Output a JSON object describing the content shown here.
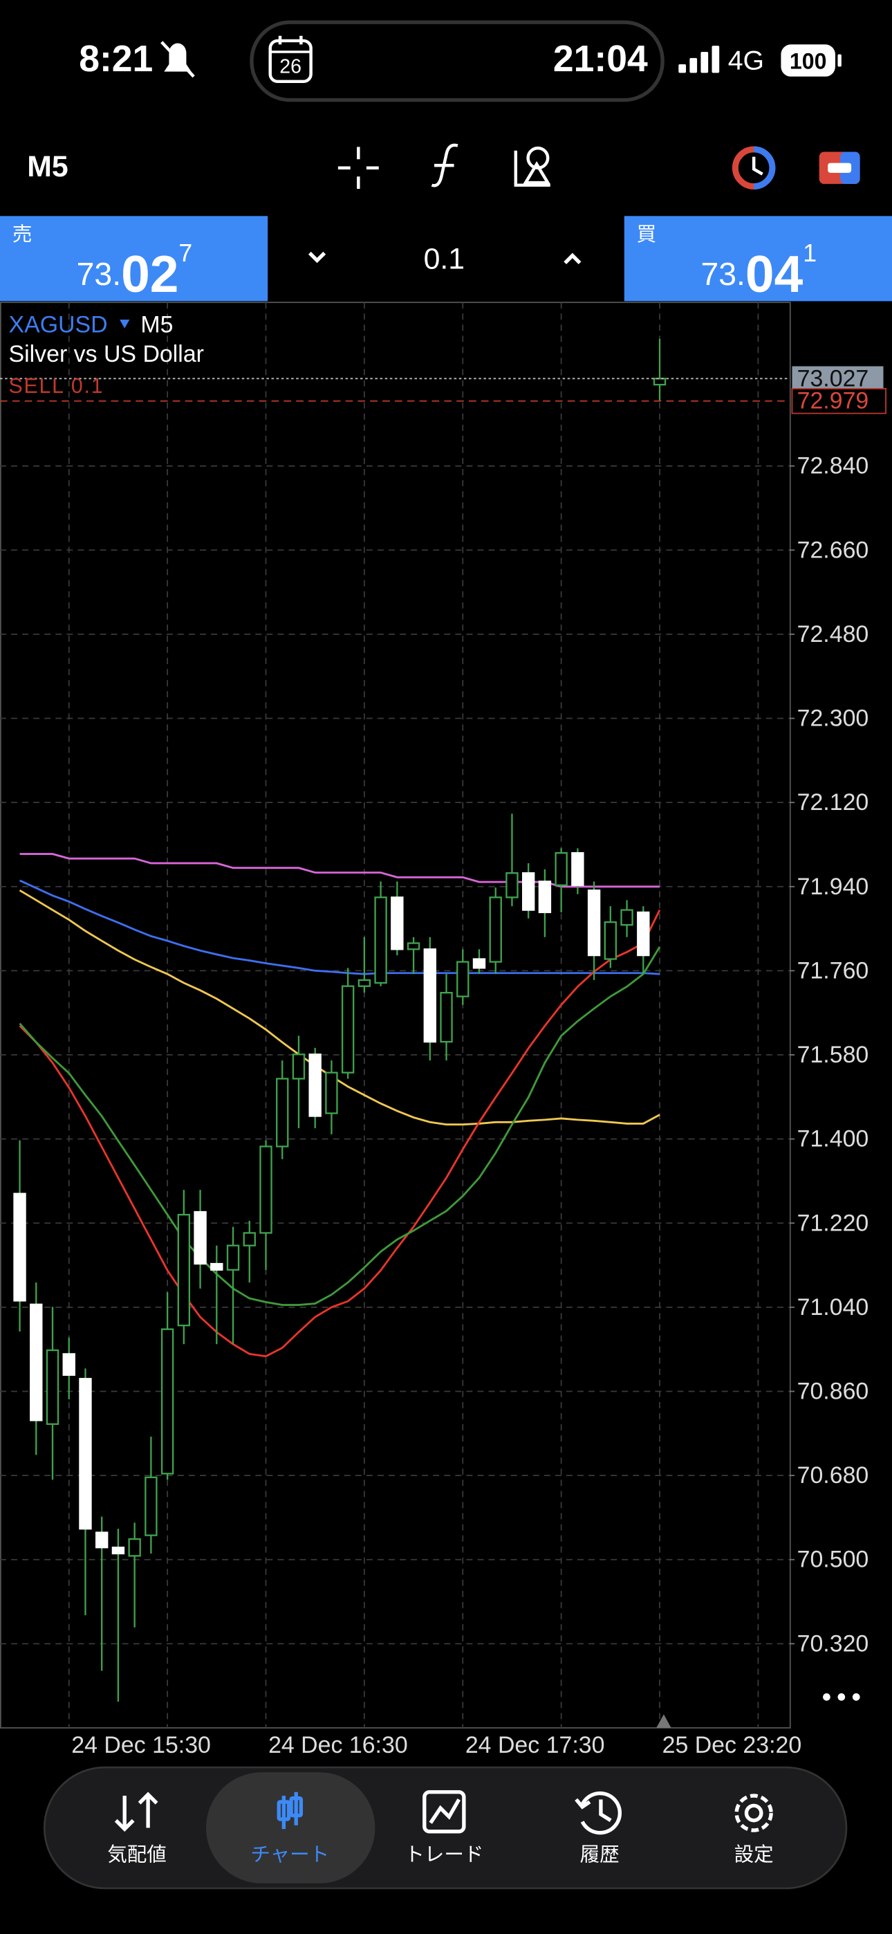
{
  "status_bar": {
    "time": "8:21",
    "calendar_day": "26",
    "clock": "21:04",
    "network": "4G",
    "battery": "100"
  },
  "toolbar": {
    "timeframe": "M5"
  },
  "trade_panel": {
    "sell": {
      "label": "売",
      "price_head": "73.",
      "price_main": "02",
      "price_tail": "7"
    },
    "volume": "0.1",
    "buy": {
      "label": "買",
      "price_head": "73.",
      "price_main": "04",
      "price_tail": "1"
    }
  },
  "chart_data": {
    "type": "candlestick",
    "symbol": "XAGUSD",
    "timeframe": "M5",
    "description": "Silver vs US Dollar",
    "categories": [
      null,
      null,
      null,
      "24 Dec 15:30",
      null,
      null,
      null,
      null,
      null,
      null,
      null,
      null,
      null,
      null,
      null,
      "24 Dec 16:30",
      null,
      null,
      null,
      null,
      null,
      null,
      null,
      null,
      null,
      null,
      null,
      "24 Dec 17:30",
      null,
      null,
      null,
      null,
      null,
      null,
      null,
      null,
      null,
      null,
      null,
      "25 Dec 23:20"
    ],
    "open": [
      71.283,
      71.046,
      70.79,
      70.94,
      70.887,
      70.558,
      70.526,
      70.508,
      70.552,
      70.684,
      71.001,
      71.244,
      71.133,
      71.12,
      71.172,
      71.199,
      71.384,
      71.529,
      71.581,
      71.455,
      71.542,
      71.727,
      71.734,
      71.917,
      71.806,
      71.806,
      71.608,
      71.705,
      71.785,
      71.779,
      71.917,
      71.969,
      71.951,
      71.943,
      72.012,
      71.932,
      71.785,
      71.858,
      71.885,
      73.014
    ],
    "high": [
      71.397,
      71.093,
      71.041,
      70.975,
      70.909,
      70.592,
      70.566,
      70.579,
      70.763,
      71.072,
      71.291,
      71.291,
      71.172,
      71.212,
      71.225,
      71.397,
      71.568,
      71.621,
      71.595,
      71.568,
      71.766,
      71.832,
      71.951,
      71.951,
      71.832,
      71.832,
      71.753,
      71.806,
      71.806,
      71.938,
      72.096,
      71.99,
      71.977,
      72.022,
      72.022,
      71.951,
      71.898,
      71.911,
      71.898,
      73.112
    ],
    "low": [
      70.988,
      70.724,
      70.671,
      70.843,
      70.381,
      70.262,
      70.196,
      70.355,
      70.513,
      70.671,
      70.961,
      71.08,
      70.961,
      70.961,
      71.093,
      71.12,
      71.357,
      71.423,
      71.423,
      71.41,
      71.529,
      71.713,
      71.727,
      71.793,
      71.753,
      71.568,
      71.568,
      71.687,
      71.753,
      71.753,
      71.898,
      71.872,
      71.832,
      71.885,
      71.924,
      71.74,
      71.766,
      71.832,
      71.753,
      72.98
    ],
    "close": [
      71.054,
      70.798,
      70.948,
      70.895,
      70.566,
      70.526,
      70.513,
      70.544,
      70.676,
      70.993,
      71.238,
      71.133,
      71.12,
      71.172,
      71.199,
      71.384,
      71.529,
      71.581,
      71.449,
      71.542,
      71.727,
      71.74,
      71.917,
      71.806,
      71.819,
      71.608,
      71.713,
      71.779,
      71.766,
      71.917,
      71.969,
      71.89,
      71.885,
      72.012,
      71.943,
      71.793,
      71.864,
      71.89,
      71.793,
      73.027
    ],
    "up_color": "#3fa34d",
    "down_color": "#ffffff",
    "wick_color": "#3fa34d",
    "series": [
      {
        "color": "#d966d9",
        "values": [
          72.01,
          72.01,
          72.01,
          72.0,
          72.0,
          72.0,
          72.0,
          72.0,
          71.99,
          71.99,
          71.99,
          71.99,
          71.99,
          71.98,
          71.98,
          71.98,
          71.98,
          71.98,
          71.97,
          71.97,
          71.97,
          71.97,
          71.97,
          71.96,
          71.96,
          71.96,
          71.96,
          71.96,
          71.95,
          71.95,
          71.95,
          71.95,
          71.95,
          71.94,
          71.94,
          71.94,
          71.94,
          71.94,
          71.94,
          71.94
        ]
      },
      {
        "color": "#3f6ff0",
        "values": [
          71.953,
          71.937,
          71.921,
          71.908,
          71.892,
          71.877,
          71.863,
          71.848,
          71.834,
          71.824,
          71.813,
          71.803,
          71.795,
          71.787,
          71.782,
          71.776,
          71.771,
          71.766,
          71.76,
          71.758,
          71.755,
          71.753,
          71.755,
          71.755,
          71.755,
          71.755,
          71.755,
          71.755,
          71.755,
          71.755,
          71.755,
          71.755,
          71.755,
          71.755,
          71.755,
          71.755,
          71.755,
          71.755,
          71.755,
          71.753
        ]
      },
      {
        "color": "#f0c850",
        "values": [
          71.932,
          71.911,
          71.89,
          71.869,
          71.845,
          71.824,
          71.803,
          71.784,
          71.768,
          71.753,
          71.734,
          71.718,
          71.7,
          71.679,
          71.658,
          71.634,
          71.607,
          71.581,
          71.557,
          71.534,
          71.512,
          71.494,
          71.476,
          71.46,
          71.446,
          71.436,
          71.431,
          71.431,
          71.433,
          71.436,
          71.436,
          71.439,
          71.441,
          71.444,
          71.441,
          71.439,
          71.436,
          71.433,
          71.433,
          71.452
        ]
      },
      {
        "color": "#e8352b",
        "values": [
          71.642,
          71.607,
          71.563,
          71.51,
          71.449,
          71.383,
          71.317,
          71.251,
          71.185,
          71.119,
          71.067,
          71.019,
          70.987,
          70.961,
          70.94,
          70.935,
          70.953,
          70.987,
          71.019,
          71.04,
          71.053,
          71.08,
          71.119,
          71.167,
          71.212,
          71.264,
          71.317,
          71.378,
          71.436,
          71.489,
          71.541,
          71.594,
          71.642,
          71.687,
          71.726,
          71.758,
          71.784,
          71.8,
          71.819,
          71.89
        ]
      },
      {
        "color": "#3f9a3a",
        "values": [
          71.647,
          71.607,
          71.573,
          71.541,
          71.494,
          71.449,
          71.396,
          71.344,
          71.291,
          71.238,
          71.185,
          71.146,
          71.111,
          71.08,
          71.059,
          71.051,
          71.045,
          71.045,
          71.048,
          71.067,
          71.093,
          71.125,
          71.159,
          71.185,
          71.204,
          71.225,
          71.246,
          71.278,
          71.317,
          71.37,
          71.431,
          71.489,
          71.563,
          71.621,
          71.652,
          71.679,
          71.705,
          71.726,
          71.753,
          71.811
        ]
      }
    ],
    "bid": 73.027,
    "order": {
      "label": "SELL 0.1",
      "price": 72.979
    },
    "ylim": [
      70.14,
      73.19
    ],
    "yticks": [
      {
        "value": 72.84,
        "label": "72.840"
      },
      {
        "value": 72.66,
        "label": "72.660"
      },
      {
        "value": 72.48,
        "label": "72.480"
      },
      {
        "value": 72.3,
        "label": "72.300"
      },
      {
        "value": 72.12,
        "label": "72.120"
      },
      {
        "value": 71.94,
        "label": "71.940"
      },
      {
        "value": 71.76,
        "label": "71.760"
      },
      {
        "value": 71.58,
        "label": "71.580"
      },
      {
        "value": 71.4,
        "label": "71.400"
      },
      {
        "value": 71.22,
        "label": "71.220"
      },
      {
        "value": 71.04,
        "label": "71.040"
      },
      {
        "value": 70.86,
        "label": "70.860"
      },
      {
        "value": 70.68,
        "label": "70.680"
      },
      {
        "value": 70.5,
        "label": "70.500"
      },
      {
        "value": 70.32,
        "label": "70.320"
      }
    ],
    "grid": true
  },
  "nav": {
    "items": [
      "気配値",
      "チャート",
      "トレード",
      "履歴",
      "設定"
    ],
    "active": 1
  }
}
